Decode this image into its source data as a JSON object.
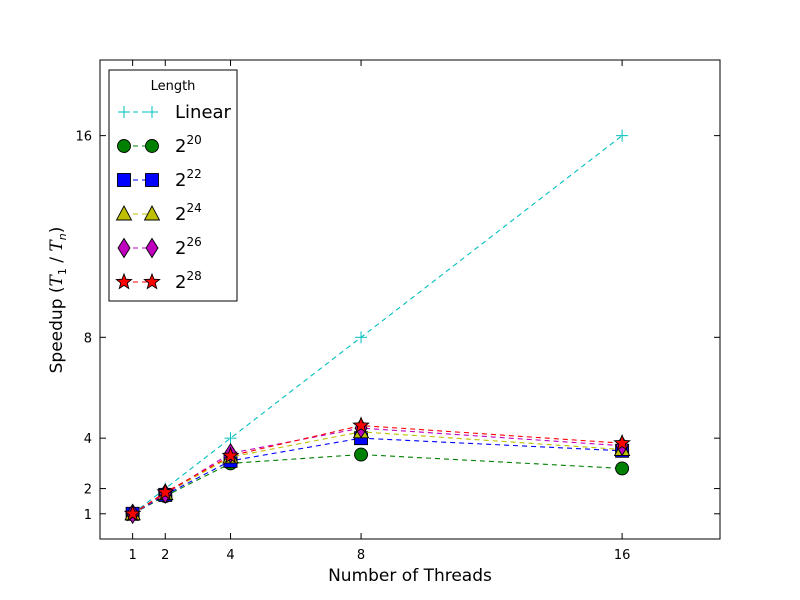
{
  "chart_data": {
    "type": "line",
    "xlabel": "Number of Threads",
    "ylabel": "Speedup (T1 / Tn)",
    "ylabel_parts": {
      "prefix": "Speedup (",
      "t": "T",
      "sub1": "1",
      "slash": " / ",
      "sub_n": "n",
      "suffix": ")"
    },
    "xlim": [
      0,
      19
    ],
    "ylim": [
      0,
      19
    ],
    "xticks": [
      1,
      2,
      4,
      8,
      16
    ],
    "yticks": [
      1,
      2,
      4,
      8,
      16
    ],
    "grid": false,
    "legend": {
      "title": "Length",
      "placement": "top-left"
    },
    "x": [
      1,
      2,
      4,
      8,
      16
    ],
    "series": [
      {
        "name": "Linear",
        "label_base": "Linear",
        "label_exp": "",
        "color": "#00bfbf",
        "marker": "plus",
        "values": [
          1,
          2,
          4,
          8,
          16
        ]
      },
      {
        "name": "2^20",
        "label_base": "2",
        "label_exp": "20",
        "color": "#008000",
        "marker": "circle",
        "values": [
          1.0,
          1.7,
          3.0,
          3.35,
          2.8
        ]
      },
      {
        "name": "2^22",
        "label_base": "2",
        "label_exp": "22",
        "color": "#0000ff",
        "marker": "square",
        "values": [
          1.0,
          1.75,
          3.1,
          4.0,
          3.5
        ]
      },
      {
        "name": "2^24",
        "label_base": "2",
        "label_exp": "24",
        "color": "#bfbf00",
        "marker": "triangle",
        "values": [
          1.0,
          1.8,
          3.25,
          4.25,
          3.55
        ]
      },
      {
        "name": "2^26",
        "label_base": "2",
        "label_exp": "26",
        "color": "#bf00bf",
        "marker": "diamond",
        "values": [
          1.0,
          1.8,
          3.4,
          4.4,
          3.7
        ]
      },
      {
        "name": "2^28",
        "label_base": "2",
        "label_exp": "28",
        "color": "#ff0000",
        "marker": "star",
        "values": [
          1.0,
          1.85,
          3.3,
          4.5,
          3.8
        ]
      }
    ]
  }
}
